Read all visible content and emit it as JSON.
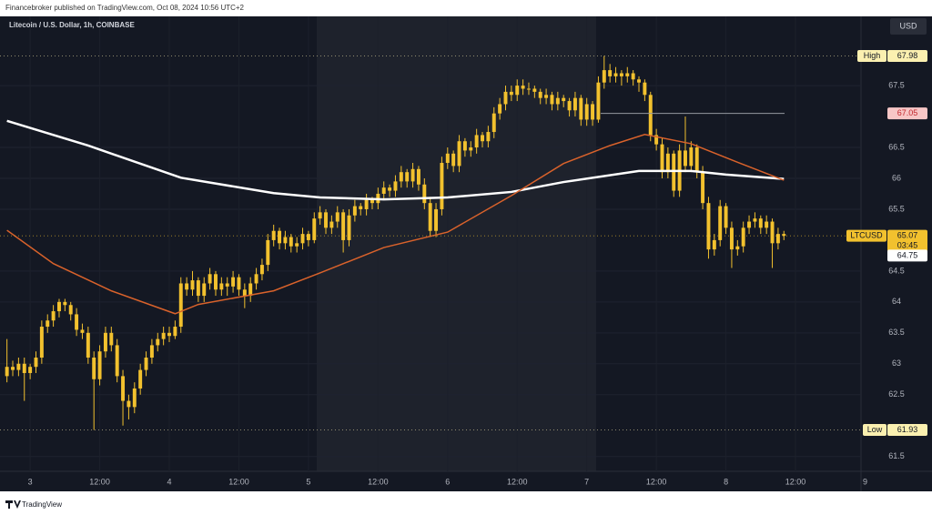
{
  "header": "Financebroker published on TradingView.com, Oct 08, 2024 10:56 UTC+2",
  "footer": "TradingView",
  "chart_data": {
    "type": "candlestick",
    "title": "Litecoin / U.S. Dollar, 1h, COINBASE",
    "currency": "USD",
    "color": "#f2c12e",
    "grid": true,
    "xlim": [
      -1.2,
      147.3
    ],
    "ylim": [
      61.26,
      68.62
    ],
    "yticks": [
      61.5,
      62.5,
      63,
      63.5,
      64,
      64.5,
      65.5,
      66,
      66.5,
      67.5
    ],
    "xticks": [
      {
        "value": 4,
        "label": "3"
      },
      {
        "value": 16,
        "label": "12:00"
      },
      {
        "value": 28,
        "label": "4"
      },
      {
        "value": 40,
        "label": "12:00"
      },
      {
        "value": 52,
        "label": "5"
      },
      {
        "value": 64,
        "label": "12:00"
      },
      {
        "value": 76,
        "label": "6"
      },
      {
        "value": 88,
        "label": "12:00"
      },
      {
        "value": 100,
        "label": "7"
      },
      {
        "value": 112,
        "label": "12:00"
      },
      {
        "value": 124,
        "label": "8"
      },
      {
        "value": 136,
        "label": "12:00"
      },
      {
        "value": 148,
        "label": "9"
      }
    ],
    "candles": [
      [
        62.8,
        63.4,
        62.7,
        62.95
      ],
      [
        62.95,
        63.05,
        62.8,
        62.9
      ],
      [
        62.9,
        63.1,
        62.8,
        63.0
      ],
      [
        63.0,
        63.1,
        62.4,
        62.85
      ],
      [
        62.85,
        63.0,
        62.75,
        62.95
      ],
      [
        62.95,
        63.2,
        62.85,
        63.1
      ],
      [
        63.1,
        63.7,
        63.0,
        63.6
      ],
      [
        63.6,
        63.8,
        63.5,
        63.7
      ],
      [
        63.7,
        63.95,
        63.6,
        63.85
      ],
      [
        63.85,
        64.05,
        63.75,
        64.0
      ],
      [
        64.0,
        64.05,
        63.85,
        63.95
      ],
      [
        63.95,
        64.0,
        63.7,
        63.8
      ],
      [
        63.8,
        63.9,
        63.45,
        63.55
      ],
      [
        63.55,
        63.65,
        63.4,
        63.5
      ],
      [
        63.5,
        63.6,
        63.0,
        63.1
      ],
      [
        63.1,
        63.2,
        61.93,
        62.75
      ],
      [
        62.75,
        63.3,
        62.65,
        63.2
      ],
      [
        63.2,
        63.6,
        63.1,
        63.5
      ],
      [
        63.5,
        63.6,
        63.2,
        63.3
      ],
      [
        63.3,
        63.4,
        62.7,
        62.8
      ],
      [
        62.8,
        62.9,
        62.0,
        62.4
      ],
      [
        62.4,
        62.5,
        62.1,
        62.3
      ],
      [
        62.3,
        62.7,
        62.2,
        62.6
      ],
      [
        62.6,
        63.0,
        62.5,
        62.9
      ],
      [
        62.9,
        63.2,
        62.8,
        63.1
      ],
      [
        63.1,
        63.4,
        63.0,
        63.3
      ],
      [
        63.3,
        63.5,
        63.2,
        63.4
      ],
      [
        63.4,
        63.6,
        63.3,
        63.5
      ],
      [
        63.5,
        63.6,
        63.35,
        63.45
      ],
      [
        63.45,
        63.7,
        63.4,
        63.6
      ],
      [
        63.6,
        64.4,
        63.5,
        64.3
      ],
      [
        64.3,
        64.4,
        64.1,
        64.2
      ],
      [
        64.2,
        64.5,
        64.1,
        64.35
      ],
      [
        64.35,
        64.4,
        64.0,
        64.1
      ],
      [
        64.1,
        64.4,
        64.0,
        64.3
      ],
      [
        64.3,
        64.55,
        64.2,
        64.45
      ],
      [
        64.45,
        64.5,
        64.1,
        64.2
      ],
      [
        64.2,
        64.4,
        64.1,
        64.3
      ],
      [
        64.3,
        64.4,
        64.1,
        64.25
      ],
      [
        64.25,
        64.5,
        64.15,
        64.4
      ],
      [
        64.4,
        64.45,
        64.1,
        64.2
      ],
      [
        64.2,
        64.3,
        63.9,
        64.1
      ],
      [
        64.1,
        64.4,
        64.0,
        64.3
      ],
      [
        64.3,
        64.55,
        64.2,
        64.45
      ],
      [
        64.45,
        64.7,
        64.35,
        64.6
      ],
      [
        64.6,
        65.1,
        64.5,
        65.0
      ],
      [
        65.0,
        65.25,
        64.9,
        65.15
      ],
      [
        65.15,
        65.2,
        64.85,
        64.95
      ],
      [
        64.95,
        65.15,
        64.85,
        65.05
      ],
      [
        65.05,
        65.1,
        64.8,
        64.9
      ],
      [
        64.9,
        65.05,
        64.8,
        64.95
      ],
      [
        64.95,
        65.2,
        64.85,
        65.1
      ],
      [
        65.1,
        65.15,
        64.9,
        65.0
      ],
      [
        65.0,
        65.45,
        64.95,
        65.35
      ],
      [
        65.35,
        65.55,
        65.25,
        65.45
      ],
      [
        65.45,
        65.5,
        65.1,
        65.2
      ],
      [
        65.2,
        65.4,
        65.1,
        65.3
      ],
      [
        65.3,
        65.55,
        65.2,
        65.45
      ],
      [
        65.45,
        65.5,
        64.8,
        65.0
      ],
      [
        65.0,
        65.5,
        64.9,
        65.4
      ],
      [
        65.4,
        65.65,
        65.3,
        65.55
      ],
      [
        65.55,
        65.6,
        65.4,
        65.5
      ],
      [
        65.5,
        65.75,
        65.4,
        65.65
      ],
      [
        65.65,
        65.7,
        65.5,
        65.6
      ],
      [
        65.6,
        65.85,
        65.5,
        65.75
      ],
      [
        65.75,
        65.95,
        65.65,
        65.85
      ],
      [
        65.85,
        65.9,
        65.7,
        65.8
      ],
      [
        65.8,
        66.05,
        65.7,
        65.95
      ],
      [
        65.95,
        66.2,
        65.85,
        66.1
      ],
      [
        66.1,
        66.15,
        65.85,
        65.95
      ],
      [
        65.95,
        66.25,
        65.85,
        66.15
      ],
      [
        66.15,
        66.2,
        65.8,
        65.9
      ],
      [
        65.9,
        66.0,
        65.5,
        65.6
      ],
      [
        65.6,
        65.7,
        65.05,
        65.15
      ],
      [
        65.15,
        65.6,
        65.05,
        65.5
      ],
      [
        65.5,
        66.35,
        65.4,
        66.25
      ],
      [
        66.25,
        66.5,
        66.15,
        66.4
      ],
      [
        66.4,
        66.45,
        66.1,
        66.2
      ],
      [
        66.2,
        66.7,
        66.1,
        66.6
      ],
      [
        66.6,
        66.65,
        66.35,
        66.45
      ],
      [
        66.45,
        66.6,
        66.35,
        66.5
      ],
      [
        66.5,
        66.8,
        66.4,
        66.7
      ],
      [
        66.7,
        66.75,
        66.5,
        66.6
      ],
      [
        66.6,
        66.85,
        66.5,
        66.75
      ],
      [
        66.75,
        67.15,
        66.65,
        67.05
      ],
      [
        67.05,
        67.3,
        66.95,
        67.2
      ],
      [
        67.2,
        67.5,
        67.1,
        67.4
      ],
      [
        67.4,
        67.5,
        67.25,
        67.35
      ],
      [
        67.35,
        67.6,
        67.25,
        67.5
      ],
      [
        67.5,
        67.6,
        67.35,
        67.45
      ],
      [
        67.45,
        67.55,
        67.35,
        67.45
      ],
      [
        67.45,
        67.5,
        67.3,
        67.4
      ],
      [
        67.4,
        67.45,
        67.2,
        67.3
      ],
      [
        67.3,
        67.45,
        67.2,
        67.35
      ],
      [
        67.35,
        67.4,
        67.1,
        67.2
      ],
      [
        67.2,
        67.4,
        67.1,
        67.3
      ],
      [
        67.3,
        67.35,
        67.15,
        67.25
      ],
      [
        67.25,
        67.3,
        67.0,
        67.1
      ],
      [
        67.1,
        67.4,
        67.0,
        67.3
      ],
      [
        67.3,
        67.35,
        66.85,
        66.95
      ],
      [
        66.95,
        67.3,
        66.85,
        67.2
      ],
      [
        67.2,
        67.25,
        66.85,
        66.95
      ],
      [
        66.95,
        67.65,
        66.9,
        67.55
      ],
      [
        67.55,
        67.98,
        67.45,
        67.75
      ],
      [
        67.75,
        67.85,
        67.55,
        67.65
      ],
      [
        67.65,
        67.8,
        67.55,
        67.7
      ],
      [
        67.7,
        67.75,
        67.5,
        67.65
      ],
      [
        67.65,
        67.8,
        67.55,
        67.7
      ],
      [
        67.7,
        67.75,
        67.5,
        67.6
      ],
      [
        67.6,
        67.65,
        67.4,
        67.55
      ],
      [
        67.55,
        67.6,
        67.25,
        67.35
      ],
      [
        67.35,
        67.4,
        66.6,
        66.7
      ],
      [
        66.7,
        66.8,
        66.45,
        66.55
      ],
      [
        66.55,
        66.65,
        66.0,
        66.1
      ],
      [
        66.1,
        66.5,
        66.0,
        66.4
      ],
      [
        66.4,
        66.45,
        65.7,
        65.8
      ],
      [
        65.8,
        66.55,
        65.7,
        66.45
      ],
      [
        66.45,
        67.0,
        66.1,
        66.2
      ],
      [
        66.2,
        66.6,
        66.1,
        66.5
      ],
      [
        66.5,
        66.55,
        66.0,
        66.1
      ],
      [
        66.1,
        66.2,
        65.5,
        65.6
      ],
      [
        65.6,
        65.7,
        64.7,
        64.85
      ],
      [
        64.85,
        65.1,
        64.75,
        65.0
      ],
      [
        65.0,
        65.65,
        64.9,
        65.55
      ],
      [
        65.55,
        65.6,
        65.1,
        65.2
      ],
      [
        65.2,
        65.3,
        64.55,
        64.85
      ],
      [
        64.85,
        65.0,
        64.75,
        64.9
      ],
      [
        64.9,
        65.3,
        64.8,
        65.2
      ],
      [
        65.2,
        65.4,
        65.1,
        65.3
      ],
      [
        65.3,
        65.45,
        65.2,
        65.35
      ],
      [
        65.35,
        65.4,
        65.1,
        65.2
      ],
      [
        65.2,
        65.4,
        65.1,
        65.3
      ],
      [
        65.3,
        65.35,
        64.55,
        64.95
      ],
      [
        64.95,
        65.2,
        64.85,
        65.1
      ],
      [
        65.1,
        65.15,
        65.0,
        65.07
      ]
    ],
    "lines": [
      {
        "color": "#ffffff",
        "x": [
          0,
          14,
          30,
          46,
          54,
          65,
          76,
          87,
          96,
          109,
          118,
          124,
          134
        ],
        "values": [
          66.93,
          66.53,
          66.01,
          65.76,
          65.69,
          65.66,
          65.69,
          65.78,
          65.94,
          66.12,
          66.12,
          66.06,
          65.99
        ]
      },
      {
        "color": "#d9622b",
        "x": [
          0,
          8,
          18,
          29,
          33,
          46,
          54,
          65,
          76,
          87,
          96,
          104,
          110,
          118,
          126,
          134
        ],
        "values": [
          65.16,
          64.62,
          64.18,
          63.81,
          63.96,
          64.18,
          64.47,
          64.88,
          65.13,
          65.72,
          66.24,
          66.53,
          66.71,
          66.56,
          66.26,
          65.97
        ]
      }
    ],
    "price_labels": [
      {
        "tag": "High",
        "value": 67.98,
        "bg": "#fbf0b0",
        "fg": "#131722",
        "dashed": true
      },
      {
        "value": 67.05,
        "bg": "#f7c6c6",
        "fg": "#c2272d",
        "dashed": false
      },
      {
        "tag": "LTCUSD",
        "value": 65.07,
        "sub": "03:45",
        "bg": "#f2c12e",
        "fg": "#131722",
        "dashed": true
      },
      {
        "value": 64.75,
        "bg": "#ffffff",
        "fg": "#131722",
        "dashed": false
      },
      {
        "tag": "Low",
        "value": 61.93,
        "bg": "#fbf0b0",
        "fg": "#131722",
        "dashed": true
      }
    ]
  }
}
